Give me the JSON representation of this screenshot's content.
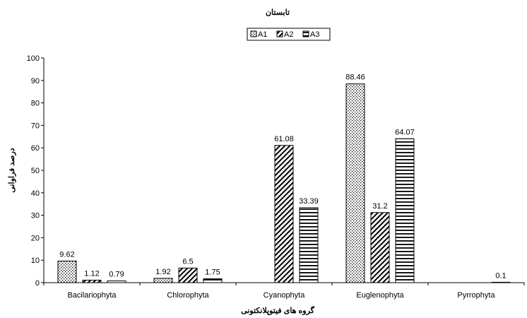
{
  "chart_data": {
    "type": "bar",
    "title": "تابستان",
    "xlabel": "گروه های فیتوپلانکتونی",
    "ylabel": "درصد فراوانی",
    "ylim": [
      0,
      100
    ],
    "yticks": [
      0,
      10,
      20,
      30,
      40,
      50,
      60,
      70,
      80,
      90,
      100
    ],
    "grid": false,
    "legend_position": "top-center",
    "categories": [
      "Bacilariophyta",
      "Chlorophyta",
      "Cyanophyta",
      "Euglenophyta",
      "Pyrrophyta"
    ],
    "series": [
      {
        "name": "A1",
        "pattern": "dots",
        "values": [
          9.62,
          1.92,
          null,
          88.46,
          null
        ],
        "labels": [
          "9.62",
          "1.92",
          "",
          "88.46",
          ""
        ]
      },
      {
        "name": "A2",
        "pattern": "diagonal",
        "values": [
          1.12,
          6.5,
          61.08,
          31.2,
          null
        ],
        "labels": [
          "1.12",
          "6.5",
          "61.08",
          "31.2",
          ""
        ]
      },
      {
        "name": "A3",
        "pattern": "horizontal",
        "values": [
          0.79,
          1.75,
          33.39,
          64.07,
          0.1
        ],
        "labels": [
          "0.79",
          "1.75",
          "33.39",
          "64.07",
          "0.1"
        ]
      }
    ]
  }
}
